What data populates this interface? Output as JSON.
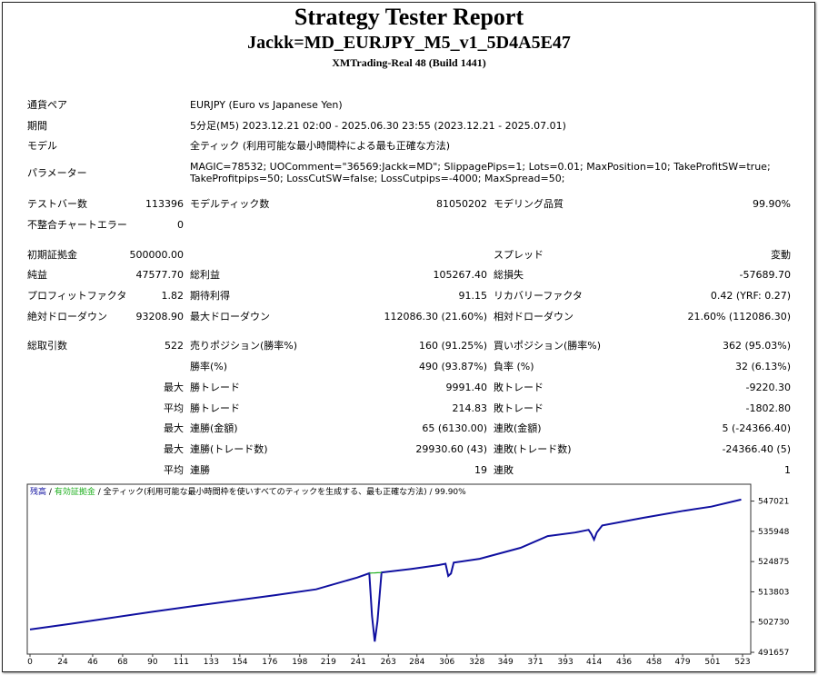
{
  "header": {
    "title": "Strategy Tester Report",
    "subtitle": "Jackk=MD_EURJPY_M5_v1_5D4A5E47",
    "broker": "XMTrading-Real 48 (Build 1441)"
  },
  "info": [
    {
      "label": "通貨ペア",
      "value": [
        "EURJPY (Euro vs Japanese Yen)"
      ]
    },
    {
      "label": "期間",
      "value": [
        "5分足(M5) 2023.12.21 02:00 - 2025.06.30 23:55 (2023.12.21 - 2025.07.01)"
      ]
    },
    {
      "label": "モデル",
      "value": [
        "全ティック (利用可能な最小時間枠による最も正確な方法)"
      ]
    },
    {
      "label": "パラメーター",
      "value": [
        "MAGIC=78532; UOComment=\"36569:Jackk=MD\"; SlippagePips=1; Lots=0.01; MaxPosition=10; TakeProfitSW=true;",
        "TakeProfitpips=50; LossCutSW=false; LossCutpips=-4000; MaxSpread=50;"
      ]
    }
  ],
  "stats": [
    [
      "テストバー数",
      "113396",
      "モデルティック数",
      "81050202",
      "モデリング品質",
      "99.90%"
    ],
    [
      "不整合チャートエラー",
      "0",
      null,
      null,
      null,
      null
    ],
    [
      "初期証拠金",
      "500000.00",
      null,
      null,
      "スプレッド",
      "変動"
    ],
    [
      "純益",
      "47577.70",
      "総利益",
      "105267.40",
      "総損失",
      "-57689.70"
    ],
    [
      "プロフィットファクタ",
      "1.82",
      "期待利得",
      "91.15",
      "リカバリーファクタ",
      "0.42 (YRF: 0.27)"
    ],
    [
      "絶対ドローダウン",
      "93208.90",
      "最大ドローダウン",
      "112086.30 (21.60%)",
      "相対ドローダウン",
      "21.60% (112086.30)"
    ],
    [
      "総取引数",
      "522",
      "売りポジション(勝率%)",
      "160 (91.25%)",
      "買いポジション(勝率%)",
      "362 (95.03%)"
    ],
    [
      null,
      null,
      "勝率(%)",
      "490 (93.87%)",
      "負率 (%)",
      "32 (6.13%)"
    ],
    [
      null,
      "最大",
      "勝トレード",
      "9991.40",
      "敗トレード",
      "-9220.30"
    ],
    [
      null,
      "平均",
      "勝トレード",
      "214.83",
      "敗トレード",
      "-1802.80"
    ],
    [
      null,
      "最大",
      "連勝(金額)",
      "65 (6130.00)",
      "連敗(金額)",
      "5 (-24366.40)"
    ],
    [
      null,
      "最大",
      "連勝(トレード数)",
      "29930.60 (43)",
      "連敗(トレード数)",
      "-24366.40 (5)"
    ],
    [
      null,
      "平均",
      "連勝",
      "19",
      "連敗",
      "1"
    ]
  ],
  "chart_data": {
    "type": "line",
    "separator": "/",
    "legend_note": "全ティック(利用可能な最小時間枠を使いすべてのティックを生成する、最も正確な方法)",
    "quality": "99.90%",
    "x": [
      0,
      30,
      60,
      90,
      120,
      150,
      180,
      210,
      240,
      249,
      251,
      253,
      255,
      257,
      258,
      280,
      300,
      305,
      307,
      309,
      311,
      330,
      360,
      380,
      400,
      410,
      412,
      414,
      416,
      420,
      450,
      480,
      500,
      522
    ],
    "series": [
      {
        "name": "残高",
        "color": "#1010a0",
        "values": [
          500000,
          502100,
          504300,
          506500,
          508600,
          510600,
          512600,
          514700,
          519000,
          520600,
          505000,
          495600,
          503000,
          515000,
          520900,
          522200,
          523600,
          524100,
          519600,
          520500,
          524500,
          525900,
          529900,
          534200,
          535500,
          536500,
          535000,
          532900,
          535500,
          538100,
          540900,
          543500,
          545000,
          547577.7
        ]
      },
      {
        "name": "有効証拠金",
        "color": "#20b020",
        "values": [
          null,
          null,
          null,
          null,
          null,
          null,
          null,
          null,
          null,
          520600,
          520700,
          520750,
          520800,
          520850,
          520900,
          null,
          null,
          null,
          null,
          null,
          null,
          null,
          null,
          null,
          null,
          null,
          null,
          null,
          null,
          null,
          null,
          null,
          null,
          null
        ]
      }
    ],
    "xlim": [
      -2,
      529
    ],
    "ylim": [
      491000,
      553200
    ],
    "xticks": [
      0,
      24,
      46,
      68,
      90,
      111,
      133,
      154,
      176,
      198,
      219,
      241,
      263,
      284,
      306,
      328,
      349,
      371,
      393,
      414,
      436,
      458,
      479,
      501,
      523
    ],
    "yticks": [
      491657,
      502730,
      513803,
      524875,
      535948,
      547021
    ]
  }
}
